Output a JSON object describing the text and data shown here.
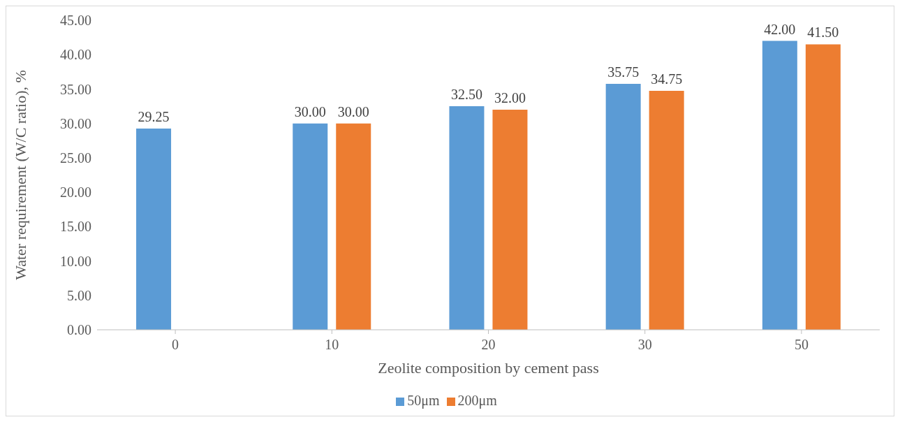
{
  "chart_data": {
    "type": "bar",
    "xlabel": "Zeolite composition by cement pass",
    "ylabel": "Water requirement (W/C ratio), %",
    "categories": [
      "0",
      "10",
      "20",
      "30",
      "50"
    ],
    "series": [
      {
        "name": "50μm",
        "color": "#5b9bd5",
        "values": [
          29.25,
          30.0,
          32.5,
          35.75,
          42.0
        ],
        "value_labels": [
          "29.25",
          "30.00",
          "32.50",
          "35.75",
          "42.00"
        ]
      },
      {
        "name": "200μm",
        "color": "#ed7d31",
        "values": [
          null,
          30.0,
          32.0,
          34.75,
          41.5
        ],
        "value_labels": [
          null,
          "30.00",
          "32.00",
          "34.75",
          "41.50"
        ]
      }
    ],
    "ylim": [
      0,
      45
    ],
    "yticks": [
      {
        "value": 0,
        "label": "0.00"
      },
      {
        "value": 5,
        "label": "5.00"
      },
      {
        "value": 10,
        "label": "10.00"
      },
      {
        "value": 15,
        "label": "15.00"
      },
      {
        "value": 20,
        "label": "20.00"
      },
      {
        "value": 25,
        "label": "25.00"
      },
      {
        "value": 30,
        "label": "30.00"
      },
      {
        "value": 35,
        "label": "35.00"
      },
      {
        "value": 40,
        "label": "40.00"
      },
      {
        "value": 45,
        "label": "45.00"
      }
    ],
    "grid": false,
    "legend": "bottom"
  }
}
